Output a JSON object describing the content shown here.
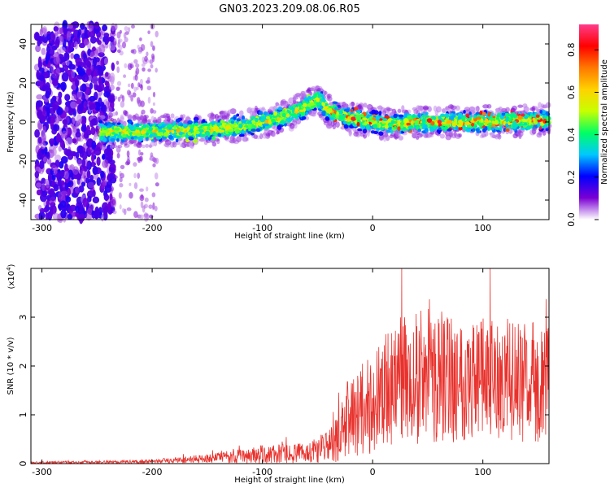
{
  "title": "GN03.2023.209.08.06.R05",
  "chart_data": [
    {
      "type": "heatmap",
      "xlabel": "Height of straight line (km)",
      "ylabel": "Frequency (Hz)",
      "xlim": [
        -310,
        160
      ],
      "ylim": [
        -50,
        50
      ],
      "x_ticks": [
        -300,
        -200,
        -100,
        0,
        100
      ],
      "y_ticks": [
        -40,
        -20,
        0,
        20,
        40
      ],
      "colorbar": {
        "label": "Normalized spectral amplitude",
        "range": [
          0,
          0.92
        ],
        "ticks": [
          0.0,
          0.2,
          0.4,
          0.6,
          0.8
        ],
        "colors": [
          "#ffffff",
          "#7b00d4",
          "#0000ff",
          "#00c8ff",
          "#00ff64",
          "#c8ff00",
          "#ffd200",
          "#ff7800",
          "#ff0000",
          "#ff3c8c"
        ]
      },
      "ridge": {
        "x": [
          -245,
          -200,
          -150,
          -120,
          -100,
          -80,
          -60,
          -50,
          -40,
          -30,
          -20,
          0,
          20,
          50,
          100,
          160
        ],
        "y": [
          -5,
          -5,
          -4,
          -2,
          0,
          3,
          8,
          12,
          6,
          4,
          2,
          0,
          -1,
          0,
          0,
          1
        ]
      }
    },
    {
      "type": "line",
      "xlabel": "Height of straight line (km)",
      "ylabel": "SNR (10 * v/v)",
      "scale_label": "(x10",
      "scale_exp": "4",
      "scale_close": ")",
      "xlim": [
        -310,
        160
      ],
      "ylim": [
        0,
        4
      ],
      "x_ticks": [
        -300,
        -200,
        -100,
        0,
        100
      ],
      "y_ticks": [
        0,
        1,
        2,
        3
      ],
      "color": "#e8322d",
      "envelope": {
        "x": [
          -310,
          -200,
          -140,
          -100,
          -60,
          -35,
          -20,
          0,
          20,
          50,
          100,
          160
        ],
        "mean": [
          0.02,
          0.04,
          0.12,
          0.18,
          0.22,
          0.4,
          1.0,
          1.2,
          1.7,
          1.8,
          1.75,
          1.65
        ],
        "amp": [
          0.02,
          0.04,
          0.1,
          0.2,
          0.2,
          0.4,
          0.9,
          1.0,
          1.3,
          1.4,
          1.3,
          1.2
        ]
      }
    }
  ]
}
